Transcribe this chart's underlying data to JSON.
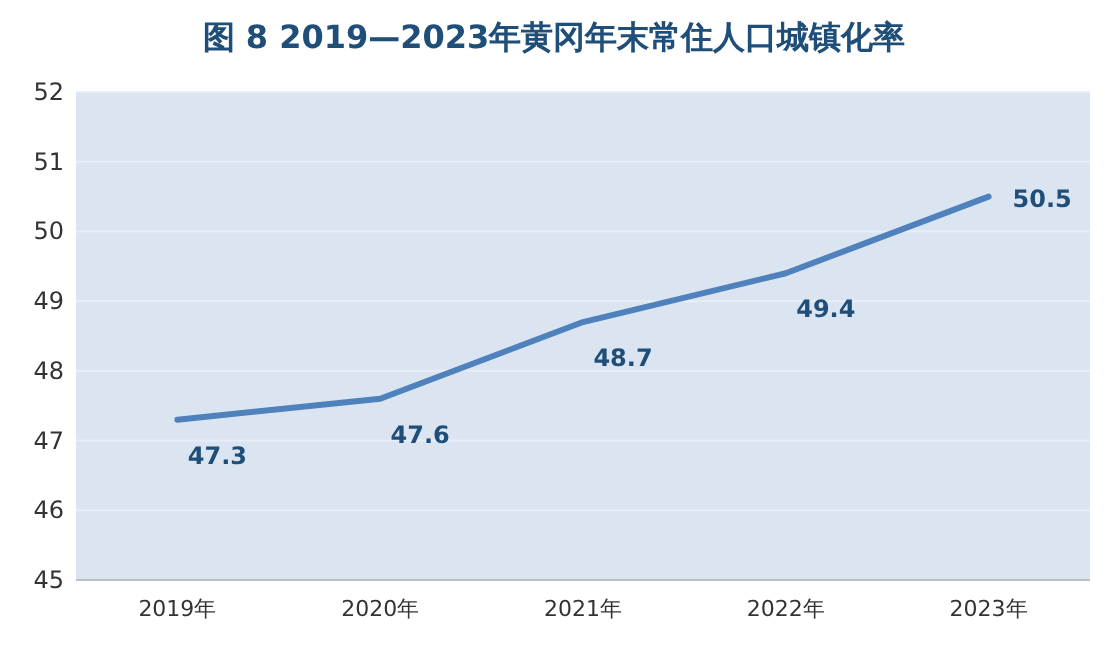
{
  "chart_data": {
    "type": "line",
    "title": "图 8  2019—2023年黄冈年末常住人口城镇化率",
    "categories": [
      "2019年",
      "2020年",
      "2021年",
      "2022年",
      "2023年"
    ],
    "series": [
      {
        "color": "#4f81bd",
        "values": [
          47.3,
          47.6,
          48.7,
          49.4,
          50.5
        ]
      }
    ],
    "ylim": [
      45,
      52
    ],
    "yticks": [
      45,
      46,
      47,
      48,
      49,
      50,
      51,
      52
    ],
    "grid": "y",
    "data_labels": true,
    "marker": "none",
    "line_style": "solid"
  }
}
